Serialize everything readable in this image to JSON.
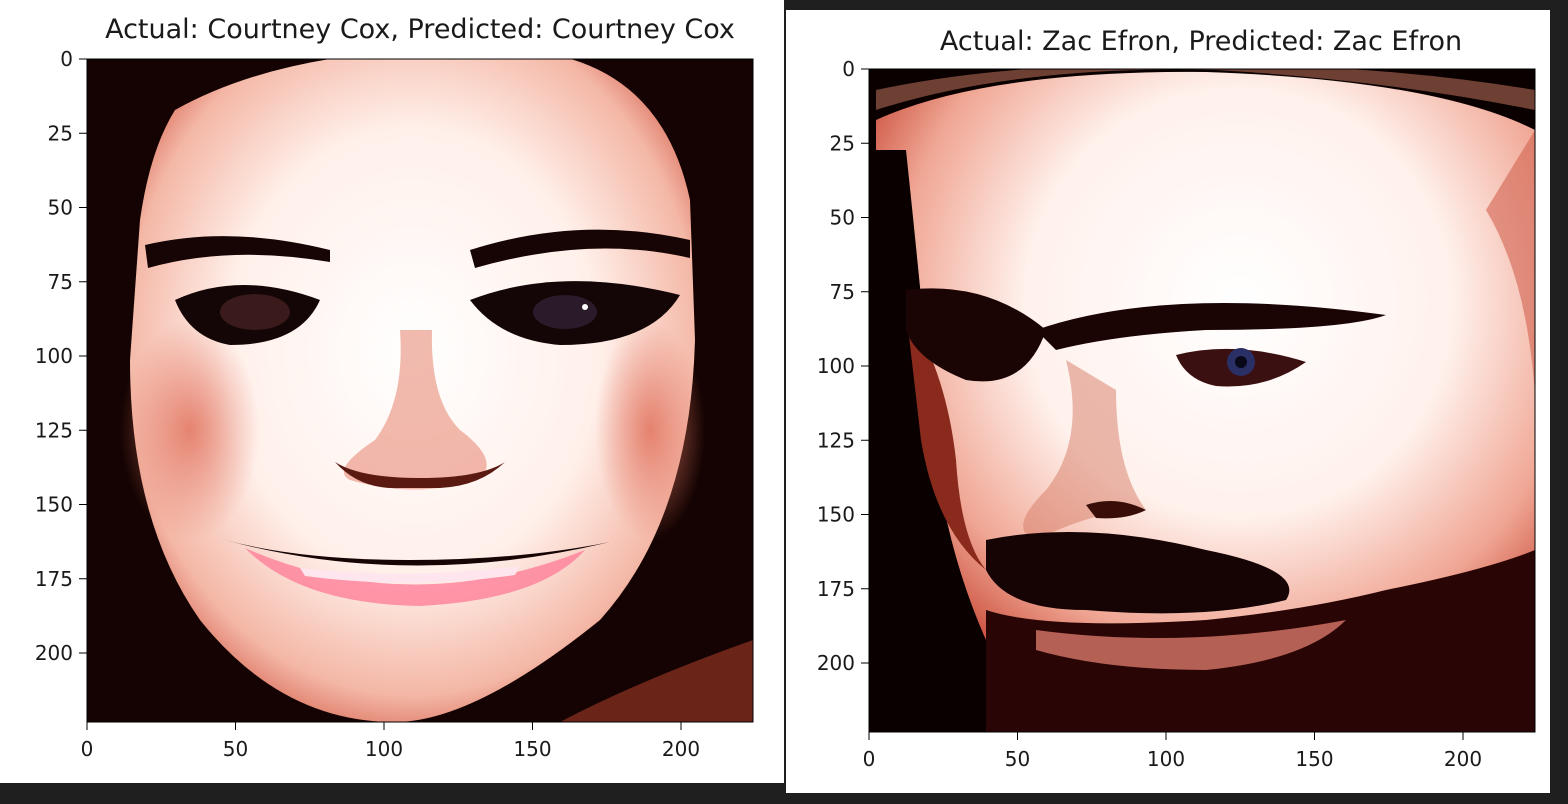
{
  "figures": [
    {
      "title": "Actual: Courtney Cox, Predicted: Courtney Cox",
      "x_ticks": [
        "0",
        "50",
        "100",
        "150",
        "200"
      ],
      "y_ticks": [
        "0",
        "25",
        "50",
        "75",
        "100",
        "125",
        "150",
        "175",
        "200"
      ],
      "image_subject": "face-portrait",
      "palette": {
        "background": "#000000",
        "skin": "#fff2ee",
        "shadow": "#e07a66",
        "lips": "#ff7f9a",
        "eyes": "#140606"
      }
    },
    {
      "title": "Actual: Zac Efron, Predicted: Zac Efron",
      "x_ticks": [
        "0",
        "50",
        "100",
        "150",
        "200"
      ],
      "y_ticks": [
        "0",
        "25",
        "50",
        "75",
        "100",
        "125",
        "150",
        "175",
        "200"
      ],
      "image_subject": "face-portrait",
      "palette": {
        "background": "#0a0000",
        "skin": "#fff3ee",
        "shadow": "#d9604c",
        "beard": "#160303",
        "eyes": "#2a2f66"
      }
    }
  ]
}
